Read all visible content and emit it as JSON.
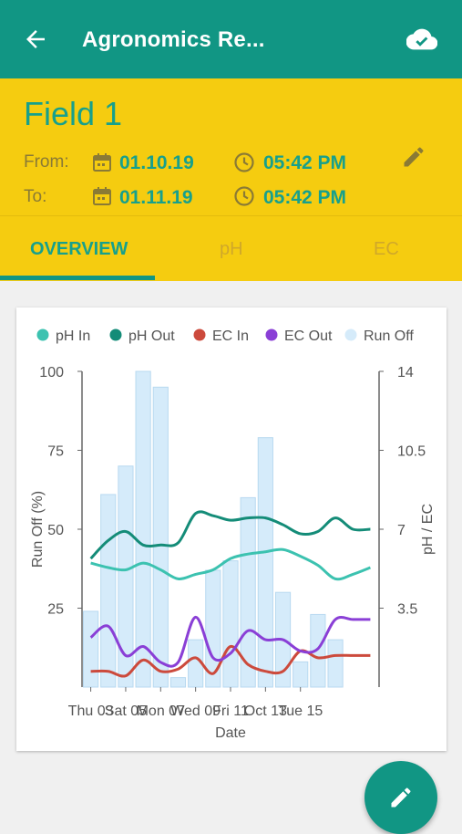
{
  "appbar": {
    "title": "Agronomics Re...",
    "back_icon": "arrow-back-icon",
    "cloud_icon": "cloud-done-icon"
  },
  "field": {
    "name": "Field 1"
  },
  "range": {
    "from_label": "From:",
    "from_date": "01.10.19",
    "from_time": "05:42 PM",
    "to_label": "To:",
    "to_date": "01.11.19",
    "to_time": "05:42 PM"
  },
  "tabs": [
    {
      "label": "OVERVIEW",
      "active": true
    },
    {
      "label": "pH",
      "active": false
    },
    {
      "label": "EC",
      "active": false
    }
  ],
  "colors": {
    "primary": "#119684",
    "header": "#f5cc10",
    "ph_in": "#3cc2b0",
    "ph_out": "#148c78",
    "ec_in": "#cc4a3c",
    "ec_out": "#8a3fd6",
    "run_off": "#d5ebfa"
  },
  "chart_data": {
    "type": "bar",
    "xlabel": "Date",
    "ylabel": "Run Off (%)",
    "y2label": "pH / EC",
    "ylim": [
      0,
      100
    ],
    "y2lim": [
      0,
      14
    ],
    "yticks": [
      "25",
      "50",
      "75",
      "100"
    ],
    "y2ticks": [
      "3.5",
      "7",
      "10.5",
      "14"
    ],
    "xticks": [
      "Thu 03",
      "Sat 05",
      "Mon 07",
      "Wed 09",
      "Fri 11",
      "Oct 13",
      "Tue 15"
    ],
    "legend": [
      "pH In",
      "pH Out",
      "EC In",
      "EC Out",
      "Run Off"
    ],
    "legend_position": "top",
    "grid": false,
    "x": [
      1,
      2,
      3,
      4,
      5,
      6,
      7,
      8,
      9,
      10,
      11,
      12,
      13,
      14,
      15,
      16,
      17
    ],
    "series": [
      {
        "name": "Run Off",
        "axis": "left",
        "kind": "bar",
        "values": [
          24,
          61,
          70,
          100,
          95,
          3,
          15,
          37,
          40,
          60,
          79,
          30,
          8,
          23,
          15,
          0,
          0
        ]
      },
      {
        "name": "pH In",
        "axis": "right",
        "kind": "line",
        "values": [
          5.5,
          5.3,
          5.2,
          5.5,
          5.2,
          4.8,
          5.0,
          5.2,
          5.7,
          5.9,
          6.0,
          6.1,
          5.8,
          5.4,
          4.8,
          5.0,
          5.3
        ]
      },
      {
        "name": "pH Out",
        "axis": "right",
        "kind": "line",
        "values": [
          5.7,
          6.5,
          6.9,
          6.3,
          6.3,
          6.4,
          7.7,
          7.6,
          7.4,
          7.5,
          7.5,
          7.2,
          6.8,
          6.9,
          7.5,
          7.0,
          7.0
        ]
      },
      {
        "name": "EC In",
        "axis": "right",
        "kind": "line",
        "values": [
          0.7,
          0.7,
          0.5,
          1.2,
          0.7,
          0.8,
          1.3,
          0.6,
          1.8,
          1.0,
          0.7,
          0.7,
          1.6,
          1.3,
          1.4,
          1.4,
          1.4
        ]
      },
      {
        "name": "EC Out",
        "axis": "right",
        "kind": "line",
        "values": [
          2.2,
          2.7,
          1.4,
          1.8,
          1.1,
          1.1,
          3.1,
          1.3,
          1.5,
          2.5,
          2.1,
          2.1,
          1.6,
          1.7,
          3.0,
          3.0,
          3.0
        ]
      }
    ]
  }
}
